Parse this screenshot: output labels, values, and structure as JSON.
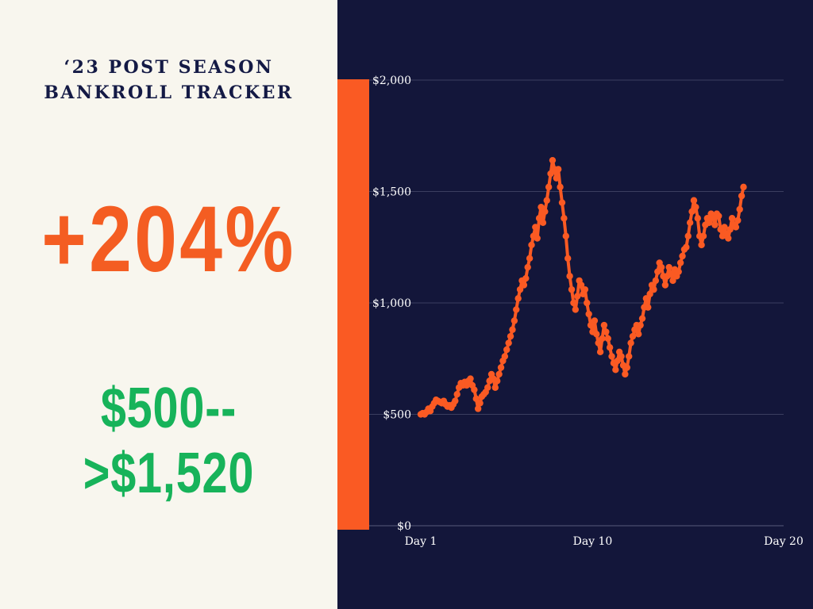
{
  "title": {
    "line1": "‘23 POST SEASON",
    "line2": "BANKROLL TRACKER"
  },
  "percent_change": "+204%",
  "bankroll_change": "$500-->$1,520",
  "colors": {
    "left_background": "#f8f6ee",
    "right_background": "#13163a",
    "accent_orange": "#fa5a23",
    "percent_text": "#f45d22",
    "bankroll_text": "#17b35a",
    "title_text": "#141a45",
    "line": "#fa5a23",
    "gridline": "#4a4d6e"
  },
  "chart_data": {
    "type": "line",
    "title": "",
    "xlabel": "",
    "ylabel": "",
    "ylim": [
      0,
      2000
    ],
    "xlim": [
      1,
      20
    ],
    "y_ticks": [
      0,
      500,
      1000,
      1500,
      2000
    ],
    "y_tick_labels": [
      "$0",
      "$500",
      "$1,000",
      "$1,500",
      "$2,000"
    ],
    "x_ticks": [
      1,
      10,
      20
    ],
    "x_tick_labels": [
      "Day 1",
      "Day 10",
      "Day 20"
    ],
    "grid": true,
    "legend": "none",
    "series": [
      {
        "values": [
          [
            1.0,
            500
          ],
          [
            1.1,
            505
          ],
          [
            1.2,
            500
          ],
          [
            1.3,
            510
          ],
          [
            1.4,
            525
          ],
          [
            1.5,
            515
          ],
          [
            1.6,
            535
          ],
          [
            1.7,
            550
          ],
          [
            1.8,
            565
          ],
          [
            1.9,
            560
          ],
          [
            2.0,
            555
          ],
          [
            2.1,
            550
          ],
          [
            2.2,
            560
          ],
          [
            2.3,
            545
          ],
          [
            2.4,
            535
          ],
          [
            2.5,
            540
          ],
          [
            2.6,
            530
          ],
          [
            2.7,
            545
          ],
          [
            2.8,
            560
          ],
          [
            2.9,
            590
          ],
          [
            3.0,
            620
          ],
          [
            3.1,
            640
          ],
          [
            3.2,
            630
          ],
          [
            3.3,
            645
          ],
          [
            3.4,
            630
          ],
          [
            3.5,
            650
          ],
          [
            3.6,
            660
          ],
          [
            3.7,
            630
          ],
          [
            3.8,
            610
          ],
          [
            3.9,
            570
          ],
          [
            4.0,
            525
          ],
          [
            4.1,
            550
          ],
          [
            4.2,
            580
          ],
          [
            4.3,
            590
          ],
          [
            4.4,
            600
          ],
          [
            4.5,
            620
          ],
          [
            4.6,
            650
          ],
          [
            4.7,
            680
          ],
          [
            4.8,
            660
          ],
          [
            4.9,
            620
          ],
          [
            5.0,
            650
          ],
          [
            5.1,
            680
          ],
          [
            5.2,
            710
          ],
          [
            5.3,
            740
          ],
          [
            5.4,
            760
          ],
          [
            5.5,
            790
          ],
          [
            5.6,
            820
          ],
          [
            5.7,
            850
          ],
          [
            5.8,
            880
          ],
          [
            5.9,
            920
          ],
          [
            6.0,
            970
          ],
          [
            6.1,
            1020
          ],
          [
            6.2,
            1060
          ],
          [
            6.3,
            1100
          ],
          [
            6.4,
            1080
          ],
          [
            6.5,
            1110
          ],
          [
            6.6,
            1160
          ],
          [
            6.7,
            1200
          ],
          [
            6.8,
            1260
          ],
          [
            6.9,
            1300
          ],
          [
            7.0,
            1340
          ],
          [
            7.1,
            1290
          ],
          [
            7.2,
            1380
          ],
          [
            7.3,
            1430
          ],
          [
            7.4,
            1360
          ],
          [
            7.5,
            1410
          ],
          [
            7.6,
            1460
          ],
          [
            7.7,
            1520
          ],
          [
            7.8,
            1580
          ],
          [
            7.9,
            1640
          ],
          [
            8.0,
            1600
          ],
          [
            8.1,
            1560
          ],
          [
            8.2,
            1600
          ],
          [
            8.3,
            1520
          ],
          [
            8.4,
            1450
          ],
          [
            8.5,
            1380
          ],
          [
            8.6,
            1300
          ],
          [
            8.7,
            1200
          ],
          [
            8.8,
            1120
          ],
          [
            8.9,
            1060
          ],
          [
            9.0,
            1000
          ],
          [
            9.1,
            970
          ],
          [
            9.2,
            1030
          ],
          [
            9.3,
            1100
          ],
          [
            9.4,
            1080
          ],
          [
            9.5,
            1040
          ],
          [
            9.6,
            1060
          ],
          [
            9.7,
            1000
          ],
          [
            9.8,
            950
          ],
          [
            9.9,
            900
          ],
          [
            10.0,
            870
          ],
          [
            10.1,
            920
          ],
          [
            10.2,
            860
          ],
          [
            10.3,
            820
          ],
          [
            10.4,
            780
          ],
          [
            10.5,
            840
          ],
          [
            10.6,
            900
          ],
          [
            10.7,
            870
          ],
          [
            10.8,
            840
          ],
          [
            10.9,
            800
          ],
          [
            11.0,
            760
          ],
          [
            11.1,
            730
          ],
          [
            11.2,
            700
          ],
          [
            11.3,
            740
          ],
          [
            11.4,
            780
          ],
          [
            11.5,
            760
          ],
          [
            11.6,
            720
          ],
          [
            11.7,
            680
          ],
          [
            11.8,
            710
          ],
          [
            11.9,
            760
          ],
          [
            12.0,
            820
          ],
          [
            12.1,
            850
          ],
          [
            12.2,
            880
          ],
          [
            12.3,
            900
          ],
          [
            12.4,
            860
          ],
          [
            12.5,
            900
          ],
          [
            12.6,
            930
          ],
          [
            12.7,
            980
          ],
          [
            12.8,
            1020
          ],
          [
            12.9,
            980
          ],
          [
            13.0,
            1040
          ],
          [
            13.1,
            1080
          ],
          [
            13.2,
            1060
          ],
          [
            13.3,
            1100
          ],
          [
            13.4,
            1140
          ],
          [
            13.5,
            1180
          ],
          [
            13.6,
            1160
          ],
          [
            13.7,
            1120
          ],
          [
            13.8,
            1080
          ],
          [
            13.9,
            1120
          ],
          [
            14.0,
            1160
          ],
          [
            14.1,
            1130
          ],
          [
            14.2,
            1100
          ],
          [
            14.3,
            1150
          ],
          [
            14.4,
            1120
          ],
          [
            14.5,
            1140
          ],
          [
            14.6,
            1180
          ],
          [
            14.7,
            1210
          ],
          [
            14.8,
            1240
          ],
          [
            14.9,
            1250
          ],
          [
            15.0,
            1300
          ],
          [
            15.1,
            1360
          ],
          [
            15.2,
            1410
          ],
          [
            15.3,
            1460
          ],
          [
            15.4,
            1430
          ],
          [
            15.5,
            1380
          ],
          [
            15.6,
            1300
          ],
          [
            15.7,
            1260
          ],
          [
            15.8,
            1300
          ],
          [
            15.9,
            1350
          ],
          [
            16.0,
            1380
          ],
          [
            16.1,
            1360
          ],
          [
            16.2,
            1400
          ],
          [
            16.3,
            1380
          ],
          [
            16.4,
            1350
          ],
          [
            16.5,
            1400
          ],
          [
            16.6,
            1390
          ],
          [
            16.7,
            1330
          ],
          [
            16.8,
            1300
          ],
          [
            16.9,
            1340
          ],
          [
            17.0,
            1310
          ],
          [
            17.1,
            1290
          ],
          [
            17.2,
            1330
          ],
          [
            17.3,
            1380
          ],
          [
            17.4,
            1350
          ],
          [
            17.5,
            1340
          ],
          [
            17.6,
            1370
          ],
          [
            17.7,
            1420
          ],
          [
            17.8,
            1480
          ],
          [
            17.9,
            1520
          ]
        ]
      }
    ]
  }
}
